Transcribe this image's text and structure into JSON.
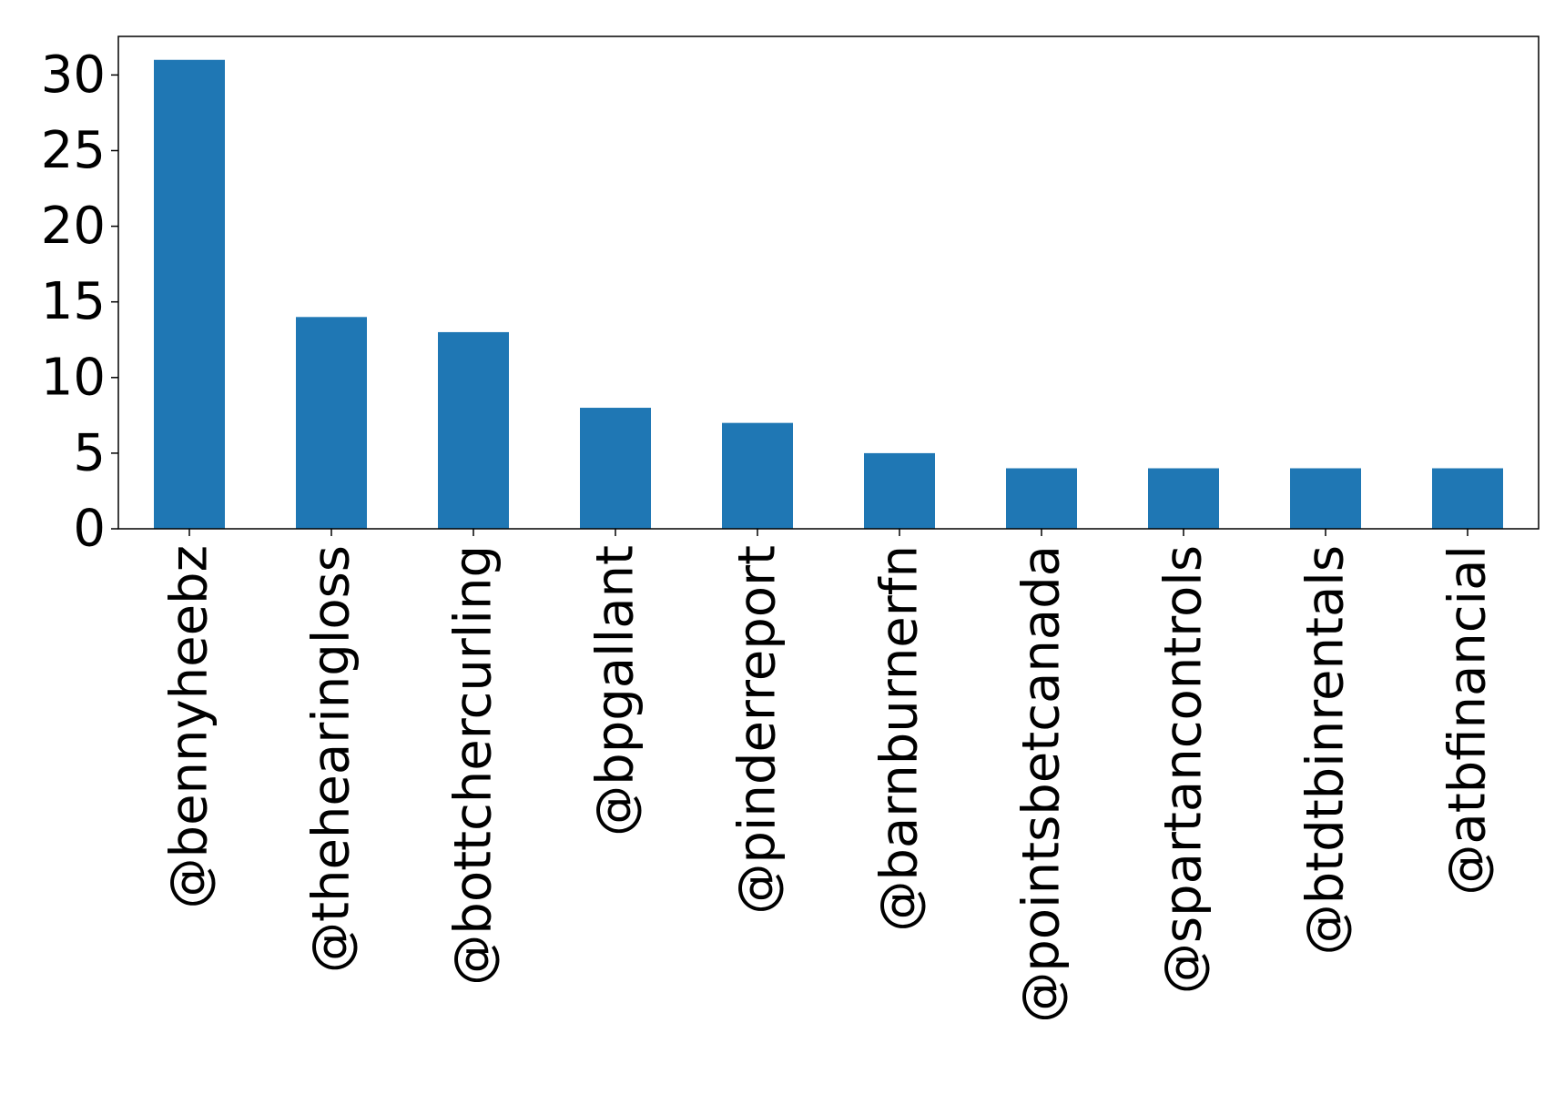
{
  "chart_data": {
    "type": "bar",
    "title": "",
    "xlabel": "",
    "ylabel": "",
    "categories": [
      "@bennyheebz",
      "@thehearingloss",
      "@bottchercurling",
      "@bpgallant",
      "@pinderreport",
      "@barnburnerfn",
      "@pointsbetcanada",
      "@spartancontrols",
      "@btdtbinrentals",
      "@atbfinancial"
    ],
    "values": [
      31,
      14,
      13,
      8,
      7,
      5,
      4,
      4,
      4,
      4
    ],
    "ylim": [
      0,
      32.55
    ],
    "yticks": [
      "0",
      "5",
      "10",
      "15",
      "20",
      "25",
      "30"
    ],
    "bar_color": "#1f77b4",
    "grid": false,
    "legend": "none"
  }
}
